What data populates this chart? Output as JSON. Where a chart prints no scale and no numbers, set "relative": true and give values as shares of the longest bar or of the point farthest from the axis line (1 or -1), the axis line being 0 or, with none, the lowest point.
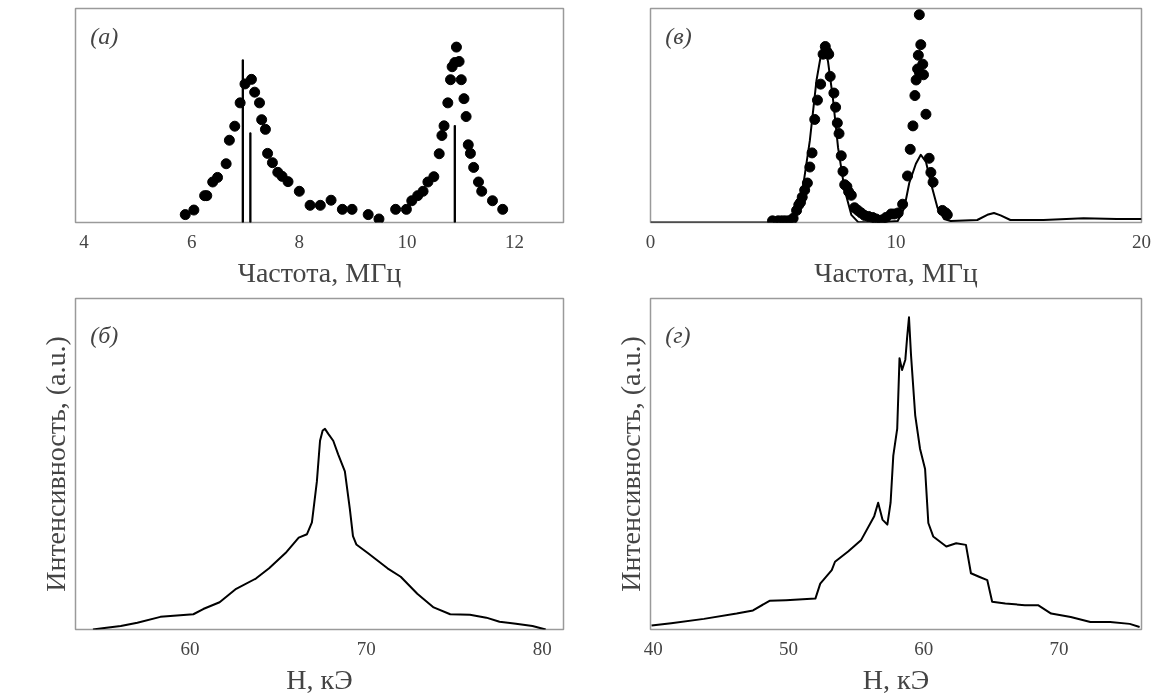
{
  "chart_data": [
    {
      "type": "scatter",
      "relative": true,
      "marker": "circle",
      "grid": false,
      "tick_labels": "x",
      "xlabel": "Частота, МГц",
      "annotations": [
        "(а)"
      ],
      "xlim": [
        3.84,
        12.91
      ],
      "xticks": [
        4,
        6,
        8,
        10,
        12
      ],
      "series": [
        {
          "type": "scatter",
          "color": "#000000",
          "x": [
            5.88,
            6.04,
            6.24,
            6.28,
            6.39,
            6.48,
            6.64,
            6.7,
            6.8,
            6.9,
            6.99,
            7.11,
            7.17,
            7.26,
            7.3,
            7.37,
            7.41,
            7.5,
            7.6,
            7.68,
            7.79,
            8.0,
            8.2,
            8.39,
            8.59,
            8.8,
            8.98,
            9.28,
            9.48,
            9.79,
            9.99,
            10.09,
            10.2,
            10.3,
            10.39,
            10.5,
            10.6,
            10.65,
            10.69,
            10.76,
            10.81,
            10.84,
            10.89,
            10.92,
            10.97,
            11.01,
            11.06,
            11.1,
            11.14,
            11.18,
            11.24,
            11.33,
            11.39,
            11.59,
            11.78
          ],
          "values": [
            0.045,
            0.071,
            0.153,
            0.153,
            0.231,
            0.257,
            0.335,
            0.469,
            0.549,
            0.682,
            0.79,
            0.816,
            0.743,
            0.682,
            0.586,
            0.531,
            0.394,
            0.341,
            0.286,
            0.263,
            0.233,
            0.178,
            0.098,
            0.098,
            0.127,
            0.075,
            0.075,
            0.045,
            0.02,
            0.075,
            0.075,
            0.124,
            0.153,
            0.178,
            0.231,
            0.261,
            0.392,
            0.496,
            0.551,
            0.682,
            0.814,
            0.888,
            0.912,
            1.0,
            0.918,
            0.814,
            0.706,
            0.604,
            0.443,
            0.394,
            0.314,
            0.231,
            0.178,
            0.124,
            0.075
          ]
        },
        {
          "type": "bar",
          "color": "#000000",
          "x": [
            6.95,
            7.09,
            10.89
          ],
          "values": [
            0.927,
            0.51,
            0.551
          ]
        }
      ]
    },
    {
      "type": "scatter",
      "relative": true,
      "grid": false,
      "tick_labels": "x",
      "xlabel": "Частота, МГц",
      "annotations": [
        "(в)"
      ],
      "xlim": [
        0,
        20
      ],
      "xticks": [
        0,
        10,
        20
      ],
      "series": [
        {
          "type": "scatter",
          "marker": "circle",
          "color": "#000000",
          "x": [
            4.97,
            5.2,
            5.34,
            5.47,
            5.61,
            5.74,
            5.81,
            5.95,
            6.04,
            6.11,
            6.18,
            6.28,
            6.39,
            6.49,
            6.58,
            6.69,
            6.8,
            6.93,
            7.03,
            7.12,
            7.19,
            7.26,
            7.32,
            7.47,
            7.54,
            7.61,
            7.68,
            7.77,
            7.84,
            7.91,
            8.0,
            8.07,
            8.18,
            8.31,
            8.45,
            8.58,
            8.72,
            8.88,
            9.05,
            9.19,
            9.35,
            9.42,
            9.59,
            9.8,
            9.93,
            10.09,
            10.27,
            10.47,
            10.58,
            10.69,
            10.77,
            10.82,
            10.88,
            10.91,
            10.95,
            10.96,
            11.01,
            11.09,
            11.12,
            11.22,
            11.35,
            11.42,
            11.51,
            11.89,
            12.03,
            12.09
          ],
          "values": [
            0.008,
            0.008,
            0.008,
            0.008,
            0.008,
            0.008,
            0.02,
            0.058,
            0.085,
            0.097,
            0.122,
            0.156,
            0.19,
            0.267,
            0.335,
            0.496,
            0.589,
            0.666,
            0.81,
            0.847,
            0.822,
            0.81,
            0.703,
            0.623,
            0.555,
            0.479,
            0.428,
            0.321,
            0.246,
            0.182,
            0.173,
            0.148,
            0.131,
            0.071,
            0.058,
            0.046,
            0.034,
            0.029,
            0.024,
            0.017,
            0.007,
            0.012,
            0.024,
            0.041,
            0.041,
            0.046,
            0.088,
            0.224,
            0.352,
            0.465,
            0.611,
            0.686,
            0.739,
            0.805,
            1.0,
            0.72,
            0.856,
            0.762,
            0.711,
            0.521,
            0.309,
            0.241,
            0.194,
            0.058,
            0.046,
            0.037
          ]
        },
        {
          "type": "line",
          "marker": "none",
          "color": "#000000",
          "x": [
            0.0,
            4.97,
            5.74,
            6.15,
            6.49,
            6.76,
            6.96,
            7.09,
            7.23,
            7.43,
            7.64,
            7.91,
            8.18,
            8.45,
            9.26,
            10.07,
            10.34,
            10.54,
            10.81,
            11.01,
            11.22,
            11.42,
            11.69,
            11.96,
            12.23,
            13.31,
            13.72,
            13.99,
            14.26,
            14.66,
            16.01,
            17.64,
            18.99,
            20.0
          ],
          "values": [
            0,
            0,
            0.003,
            0.122,
            0.394,
            0.683,
            0.818,
            0.835,
            0.776,
            0.598,
            0.36,
            0.156,
            0.037,
            0.003,
            0,
            0.007,
            0.071,
            0.19,
            0.283,
            0.326,
            0.292,
            0.19,
            0.071,
            0.017,
            0.007,
            0.012,
            0.037,
            0.046,
            0.034,
            0.012,
            0.012,
            0.02,
            0.017,
            0.017
          ]
        }
      ]
    },
    {
      "type": "line",
      "relative": true,
      "grid": false,
      "tick_labels": "x",
      "xlabel": "H, кЭ",
      "ylabel": "Интенсивность, (a.u.)",
      "annotations": [
        "(б)"
      ],
      "xlim": [
        53.5,
        81.2
      ],
      "xticks": [
        60,
        70,
        80
      ],
      "series": [
        {
          "color": "#000000",
          "x": [
            54.49,
            55.14,
            56.07,
            57.01,
            58.32,
            60.19,
            60.75,
            61.68,
            62.62,
            63.74,
            64.49,
            65.42,
            66.17,
            66.64,
            66.92,
            67.2,
            67.38,
            67.53,
            67.66,
            67.85,
            68.13,
            68.41,
            68.79,
            69.07,
            69.25,
            69.44,
            70.09,
            71.21,
            71.96,
            72.9,
            73.83,
            74.77,
            75.89,
            76.82,
            77.57,
            78.5,
            79.44,
            80.19
          ],
          "values": [
            0,
            0.008,
            0.017,
            0.034,
            0.063,
            0.076,
            0.102,
            0.136,
            0.203,
            0.254,
            0.305,
            0.381,
            0.458,
            0.475,
            0.534,
            0.737,
            0.941,
            0.992,
            1.0,
            0.975,
            0.941,
            0.873,
            0.788,
            0.602,
            0.466,
            0.424,
            0.381,
            0.305,
            0.263,
            0.178,
            0.11,
            0.076,
            0.073,
            0.059,
            0.039,
            0.029,
            0.017,
            0
          ]
        }
      ]
    },
    {
      "type": "line",
      "relative": true,
      "grid": false,
      "tick_labels": "x",
      "xlabel": "H, кЭ",
      "ylabel": "Интенсивность, (a.u.)",
      "annotations": [
        "(г)"
      ],
      "xlim": [
        39.8,
        76.1
      ],
      "xticks": [
        40,
        50,
        60,
        70
      ],
      "series": [
        {
          "color": "#000000",
          "x": [
            39.88,
            41.33,
            43.75,
            46.17,
            47.38,
            48.6,
            49.81,
            51.99,
            52.35,
            53.2,
            53.44,
            54.41,
            55.38,
            56.34,
            56.63,
            56.95,
            57.31,
            57.55,
            57.75,
            58.04,
            58.21,
            58.4,
            58.64,
            58.77,
            58.91,
            59.06,
            59.37,
            59.73,
            60.1,
            60.34,
            60.7,
            61.67,
            62.4,
            63.12,
            63.49,
            64.09,
            64.7,
            65.06,
            66.03,
            67.48,
            68.45,
            69.42,
            70.87,
            72.32,
            73.78,
            75.23,
            75.96
          ],
          "values": [
            0.013,
            0.02,
            0.034,
            0.051,
            0.061,
            0.092,
            0.094,
            0.099,
            0.147,
            0.19,
            0.217,
            0.25,
            0.287,
            0.363,
            0.406,
            0.352,
            0.336,
            0.406,
            0.557,
            0.643,
            0.869,
            0.831,
            0.864,
            0.934,
            1.0,
            0.879,
            0.686,
            0.578,
            0.514,
            0.341,
            0.298,
            0.266,
            0.276,
            0.271,
            0.18,
            0.169,
            0.158,
            0.089,
            0.083,
            0.078,
            0.078,
            0.051,
            0.04,
            0.024,
            0.024,
            0.018,
            0.008
          ]
        }
      ]
    }
  ]
}
